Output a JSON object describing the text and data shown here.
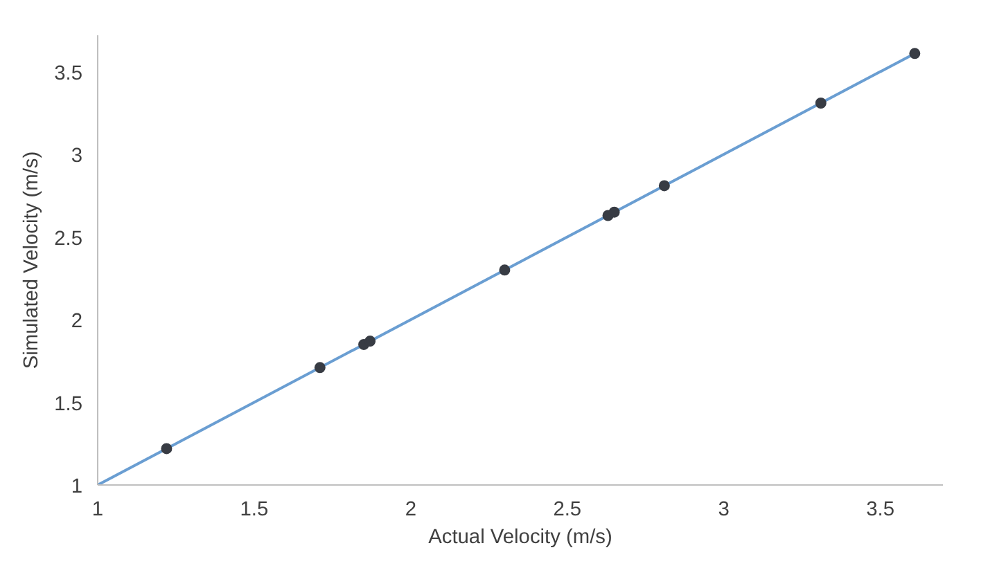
{
  "chart_data": {
    "type": "scatter",
    "xlabel": "Actual Velocity (m/s)",
    "ylabel": "Simulated Velocity (m/s)",
    "xlim": [
      1,
      3.7
    ],
    "ylim": [
      1,
      3.72
    ],
    "xticks": [
      1,
      1.5,
      2,
      2.5,
      3,
      3.5
    ],
    "yticks": [
      1,
      1.5,
      2,
      2.5,
      3,
      3.5
    ],
    "grid": false,
    "series": [
      {
        "marker": "circle",
        "color": "#383c44",
        "x": [
          1.22,
          1.71,
          1.85,
          1.87,
          2.3,
          2.63,
          2.65,
          2.81,
          3.31,
          3.61
        ],
        "values": [
          1.22,
          1.71,
          1.85,
          1.87,
          2.3,
          2.63,
          2.65,
          2.81,
          3.31,
          3.61
        ]
      },
      {
        "type": "line",
        "color": "#6a9ed2",
        "x": [
          1,
          3.62
        ],
        "values": [
          1,
          3.62
        ]
      }
    ]
  }
}
